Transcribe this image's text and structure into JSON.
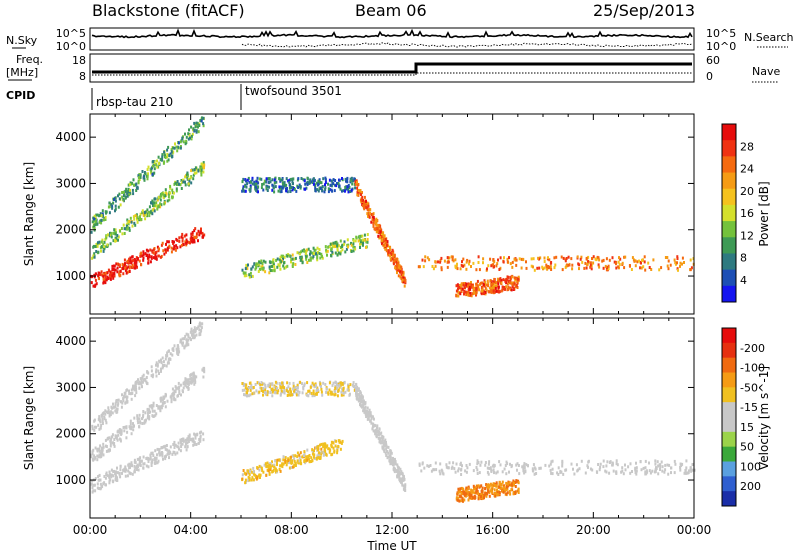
{
  "header": {
    "station": "Blackstone (fitACF)",
    "beam": "Beam 06",
    "date": "25/Sep/2013"
  },
  "noise_panel": {
    "left_label": "N.Sky",
    "right_label": "N.Search",
    "left_ticks": [
      "10^5",
      "10^0"
    ],
    "right_ticks": [
      "10^5",
      "10^0"
    ]
  },
  "freq_panel": {
    "left_label_1": "Freq.",
    "left_label_2": "[MHz]",
    "left_ticks": [
      "18",
      "8"
    ],
    "right_label": "Nave",
    "right_ticks": [
      "60",
      "0"
    ]
  },
  "cpid_panel": {
    "label": "CPID",
    "modes": [
      {
        "name": "rbsp-tau 210",
        "start_hour": 0
      },
      {
        "name": "twofsound 3501",
        "start_hour": 6
      }
    ]
  },
  "chart_data": [
    {
      "type": "heatmap",
      "title": "",
      "xlabel": "Time UT",
      "ylabel": "Slant Range [km]",
      "x_ticks": [
        "00:00",
        "04:00",
        "08:00",
        "12:00",
        "16:00",
        "20:00",
        "00:00"
      ],
      "x_range_hours": [
        0,
        24
      ],
      "y_ticks": [
        1000,
        2000,
        3000,
        4000
      ],
      "ylim": [
        180,
        4500
      ],
      "colorbar": {
        "label": "Power [dB]",
        "ticks": [
          "4",
          "8",
          "12",
          "16",
          "20",
          "24",
          "28"
        ],
        "range": [
          0,
          30
        ],
        "colors": [
          "#1515f0",
          "#1d4fb5",
          "#2e7a80",
          "#3e9a55",
          "#74c23c",
          "#d4e02c",
          "#f5c21e",
          "#f59b14",
          "#f56a0f",
          "#f03212",
          "#e60c0c"
        ]
      },
      "scatter_features": [
        {
          "t_start": 0.0,
          "t_end": 4.5,
          "range_start": 900,
          "range_end": 2000,
          "level": 28
        },
        {
          "t_start": 0.0,
          "t_end": 4.5,
          "range_start": 1500,
          "range_end": 3400,
          "level": 12
        },
        {
          "t_start": 0.0,
          "t_end": 4.5,
          "range_start": 2100,
          "range_end": 4400,
          "level": 10
        },
        {
          "t_start": 6.0,
          "t_end": 11.0,
          "range_start": 1100,
          "range_end": 1800,
          "level": 12
        },
        {
          "t_start": 6.0,
          "t_end": 10.5,
          "range_start": 3000,
          "range_end": 3000,
          "level": 6
        },
        {
          "t_start": 10.5,
          "t_end": 12.5,
          "range_start": 3000,
          "range_end": 900,
          "level": 24
        },
        {
          "t_start": 13.0,
          "t_end": 24.0,
          "range_start": 1300,
          "range_end": 1300,
          "level": 22
        },
        {
          "t_start": 14.5,
          "t_end": 17.0,
          "range_start": 700,
          "range_end": 900,
          "level": 24
        }
      ]
    },
    {
      "type": "heatmap",
      "title": "",
      "xlabel": "Time UT",
      "ylabel": "Slant Range [km]",
      "x_ticks": [
        "00:00",
        "04:00",
        "08:00",
        "12:00",
        "16:00",
        "20:00",
        "00:00"
      ],
      "x_range_hours": [
        0,
        24
      ],
      "y_ticks": [
        1000,
        2000,
        3000,
        4000
      ],
      "ylim": [
        180,
        4500
      ],
      "colorbar": {
        "label": "Velocity [m s^-1]",
        "ticks": [
          "200",
          "100",
          "50",
          "15",
          "-15",
          "-50",
          "-100",
          "-200"
        ],
        "range": [
          -250,
          250
        ],
        "colors": [
          "#1a2ea8",
          "#2f5fd0",
          "#5aa0e0",
          "#3aa83a",
          "#9bd34a",
          "#c8c8c8",
          "#c8c8c8",
          "#f0c020",
          "#f59b14",
          "#f06a10",
          "#e63010",
          "#e60c0c"
        ]
      },
      "scatter_features": [
        {
          "t_start": 0.0,
          "t_end": 4.5,
          "range_start": 900,
          "range_end": 2000,
          "level": 0
        },
        {
          "t_start": 0.0,
          "t_end": 4.5,
          "range_start": 1500,
          "range_end": 3400,
          "level": 0
        },
        {
          "t_start": 0.0,
          "t_end": 4.5,
          "range_start": 2100,
          "range_end": 4400,
          "level": 0
        },
        {
          "t_start": 6.0,
          "t_end": 10.0,
          "range_start": 1100,
          "range_end": 1800,
          "level": -60
        },
        {
          "t_start": 6.0,
          "t_end": 10.5,
          "range_start": 3000,
          "range_end": 3000,
          "level": -40
        },
        {
          "t_start": 10.5,
          "t_end": 12.5,
          "range_start": 3000,
          "range_end": 900,
          "level": 10
        },
        {
          "t_start": 13.0,
          "t_end": 24.0,
          "range_start": 1300,
          "range_end": 1300,
          "level": 0
        },
        {
          "t_start": 14.5,
          "t_end": 17.0,
          "range_start": 700,
          "range_end": 900,
          "level": -120
        }
      ]
    }
  ]
}
